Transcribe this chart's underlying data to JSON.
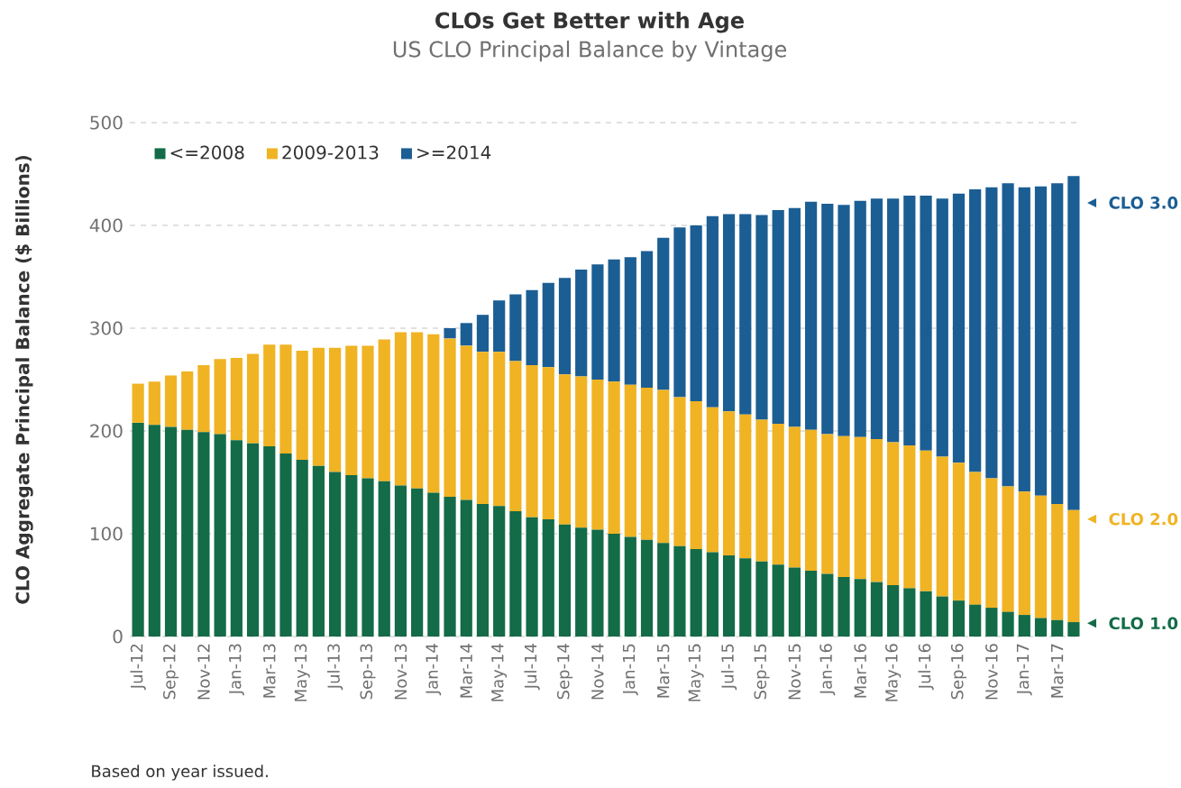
{
  "chart_data": {
    "type": "bar",
    "stacked": true,
    "title": "CLOs Get Better with Age",
    "subtitle": "US CLO Principal Balance by Vintage",
    "ylabel": "CLO Aggregate Principal Balance ($ Billions)",
    "categories": [
      "Jul-12",
      null,
      "Sep-12",
      null,
      "Nov-12",
      null,
      "Jan-13",
      null,
      "Mar-13",
      null,
      "May-13",
      null,
      "Jul-13",
      null,
      "Sep-13",
      null,
      "Nov-13",
      null,
      "Jan-14",
      null,
      "Mar-14",
      null,
      "May-14",
      null,
      "Jul-14",
      null,
      "Sep-14",
      null,
      "Nov-14",
      null,
      "Jan-15",
      null,
      "Mar-15",
      null,
      "May-15",
      null,
      "Jul-15",
      null,
      "Sep-15",
      null,
      "Nov-15",
      null,
      "Jan-16",
      null,
      "Mar-16",
      null,
      "May-16",
      null,
      "Jul-16",
      null,
      "Sep-16",
      null,
      "Nov-16",
      null,
      "Jan-17",
      null,
      "Mar-17",
      null
    ],
    "series": [
      {
        "name": "<=2008",
        "color": "#136b47",
        "values": [
          208,
          206,
          204,
          201,
          199,
          197,
          191,
          188,
          185,
          178,
          172,
          166,
          160,
          157,
          154,
          151,
          147,
          144,
          140,
          136,
          133,
          129,
          127,
          122,
          116,
          114,
          109,
          106,
          104,
          100,
          97,
          94,
          91,
          88,
          85,
          82,
          79,
          76,
          73,
          70,
          67,
          64,
          61,
          58,
          56,
          53,
          50,
          47,
          44,
          39,
          35,
          31,
          28,
          24,
          21,
          18,
          16,
          14
        ]
      },
      {
        "name": "2009-2013",
        "color": "#f0b323",
        "values": [
          38,
          42,
          50,
          57,
          65,
          73,
          80,
          87,
          99,
          106,
          106,
          115,
          121,
          126,
          129,
          138,
          149,
          152,
          154,
          154,
          150,
          148,
          150,
          146,
          148,
          148,
          146,
          147,
          146,
          148,
          148,
          148,
          149,
          145,
          144,
          141,
          140,
          140,
          138,
          137,
          137,
          137,
          136,
          137,
          138,
          139,
          139,
          139,
          137,
          136,
          134,
          129,
          126,
          122,
          120,
          119,
          113,
          109
        ]
      },
      {
        "name": ">=2014",
        "color": "#1b5e94",
        "values": [
          null,
          null,
          null,
          null,
          null,
          null,
          null,
          null,
          null,
          null,
          null,
          null,
          null,
          null,
          null,
          null,
          null,
          null,
          null,
          10,
          22,
          36,
          50,
          65,
          73,
          82,
          94,
          104,
          112,
          119,
          124,
          133,
          148,
          165,
          171,
          186,
          192,
          195,
          199,
          208,
          213,
          222,
          224,
          225,
          230,
          234,
          237,
          243,
          248,
          251,
          262,
          275,
          283,
          295,
          296,
          301,
          312,
          325
        ]
      }
    ],
    "ylim": [
      0,
      500
    ],
    "yticks": [
      0,
      100,
      200,
      300,
      400,
      500
    ],
    "grid": "y",
    "legend": "top left",
    "annotations": [
      "CLO 3.0",
      "CLO 2.0",
      "CLO 1.0",
      "Based on year issued."
    ]
  }
}
